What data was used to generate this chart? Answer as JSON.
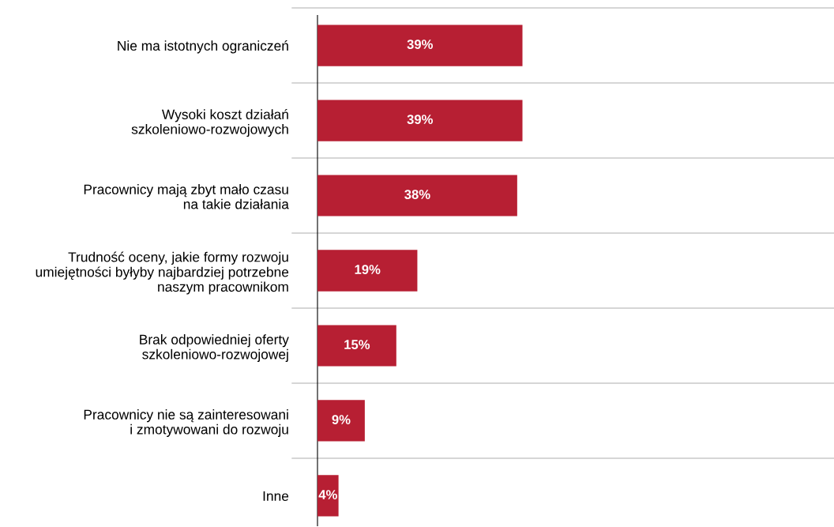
{
  "chart_data": {
    "type": "bar",
    "orientation": "horizontal",
    "categories": [
      "Nie ma istotnych ograniczeń",
      "Wysoki koszt działań\nszkoleniowo-rozwojowych",
      "Pracownicy mają zbyt mało czasu\nna takie działania",
      "Trudność oceny, jakie formy rozwoju\numiejętności byłyby najbardziej potrzebne\nnaszym pracownikom",
      "Brak odpowiedniej oferty\nszkoleniowo-rozwojowej",
      "Pracownicy nie są zainteresowani\ni zmotywowani do rozwoju",
      "Inne"
    ],
    "values": [
      39,
      39,
      38,
      19,
      15,
      9,
      4
    ],
    "value_labels": [
      "39%",
      "39%",
      "38%",
      "19%",
      "15%",
      "9%",
      "4%"
    ],
    "color": "#b71f33",
    "grid": "y"
  }
}
